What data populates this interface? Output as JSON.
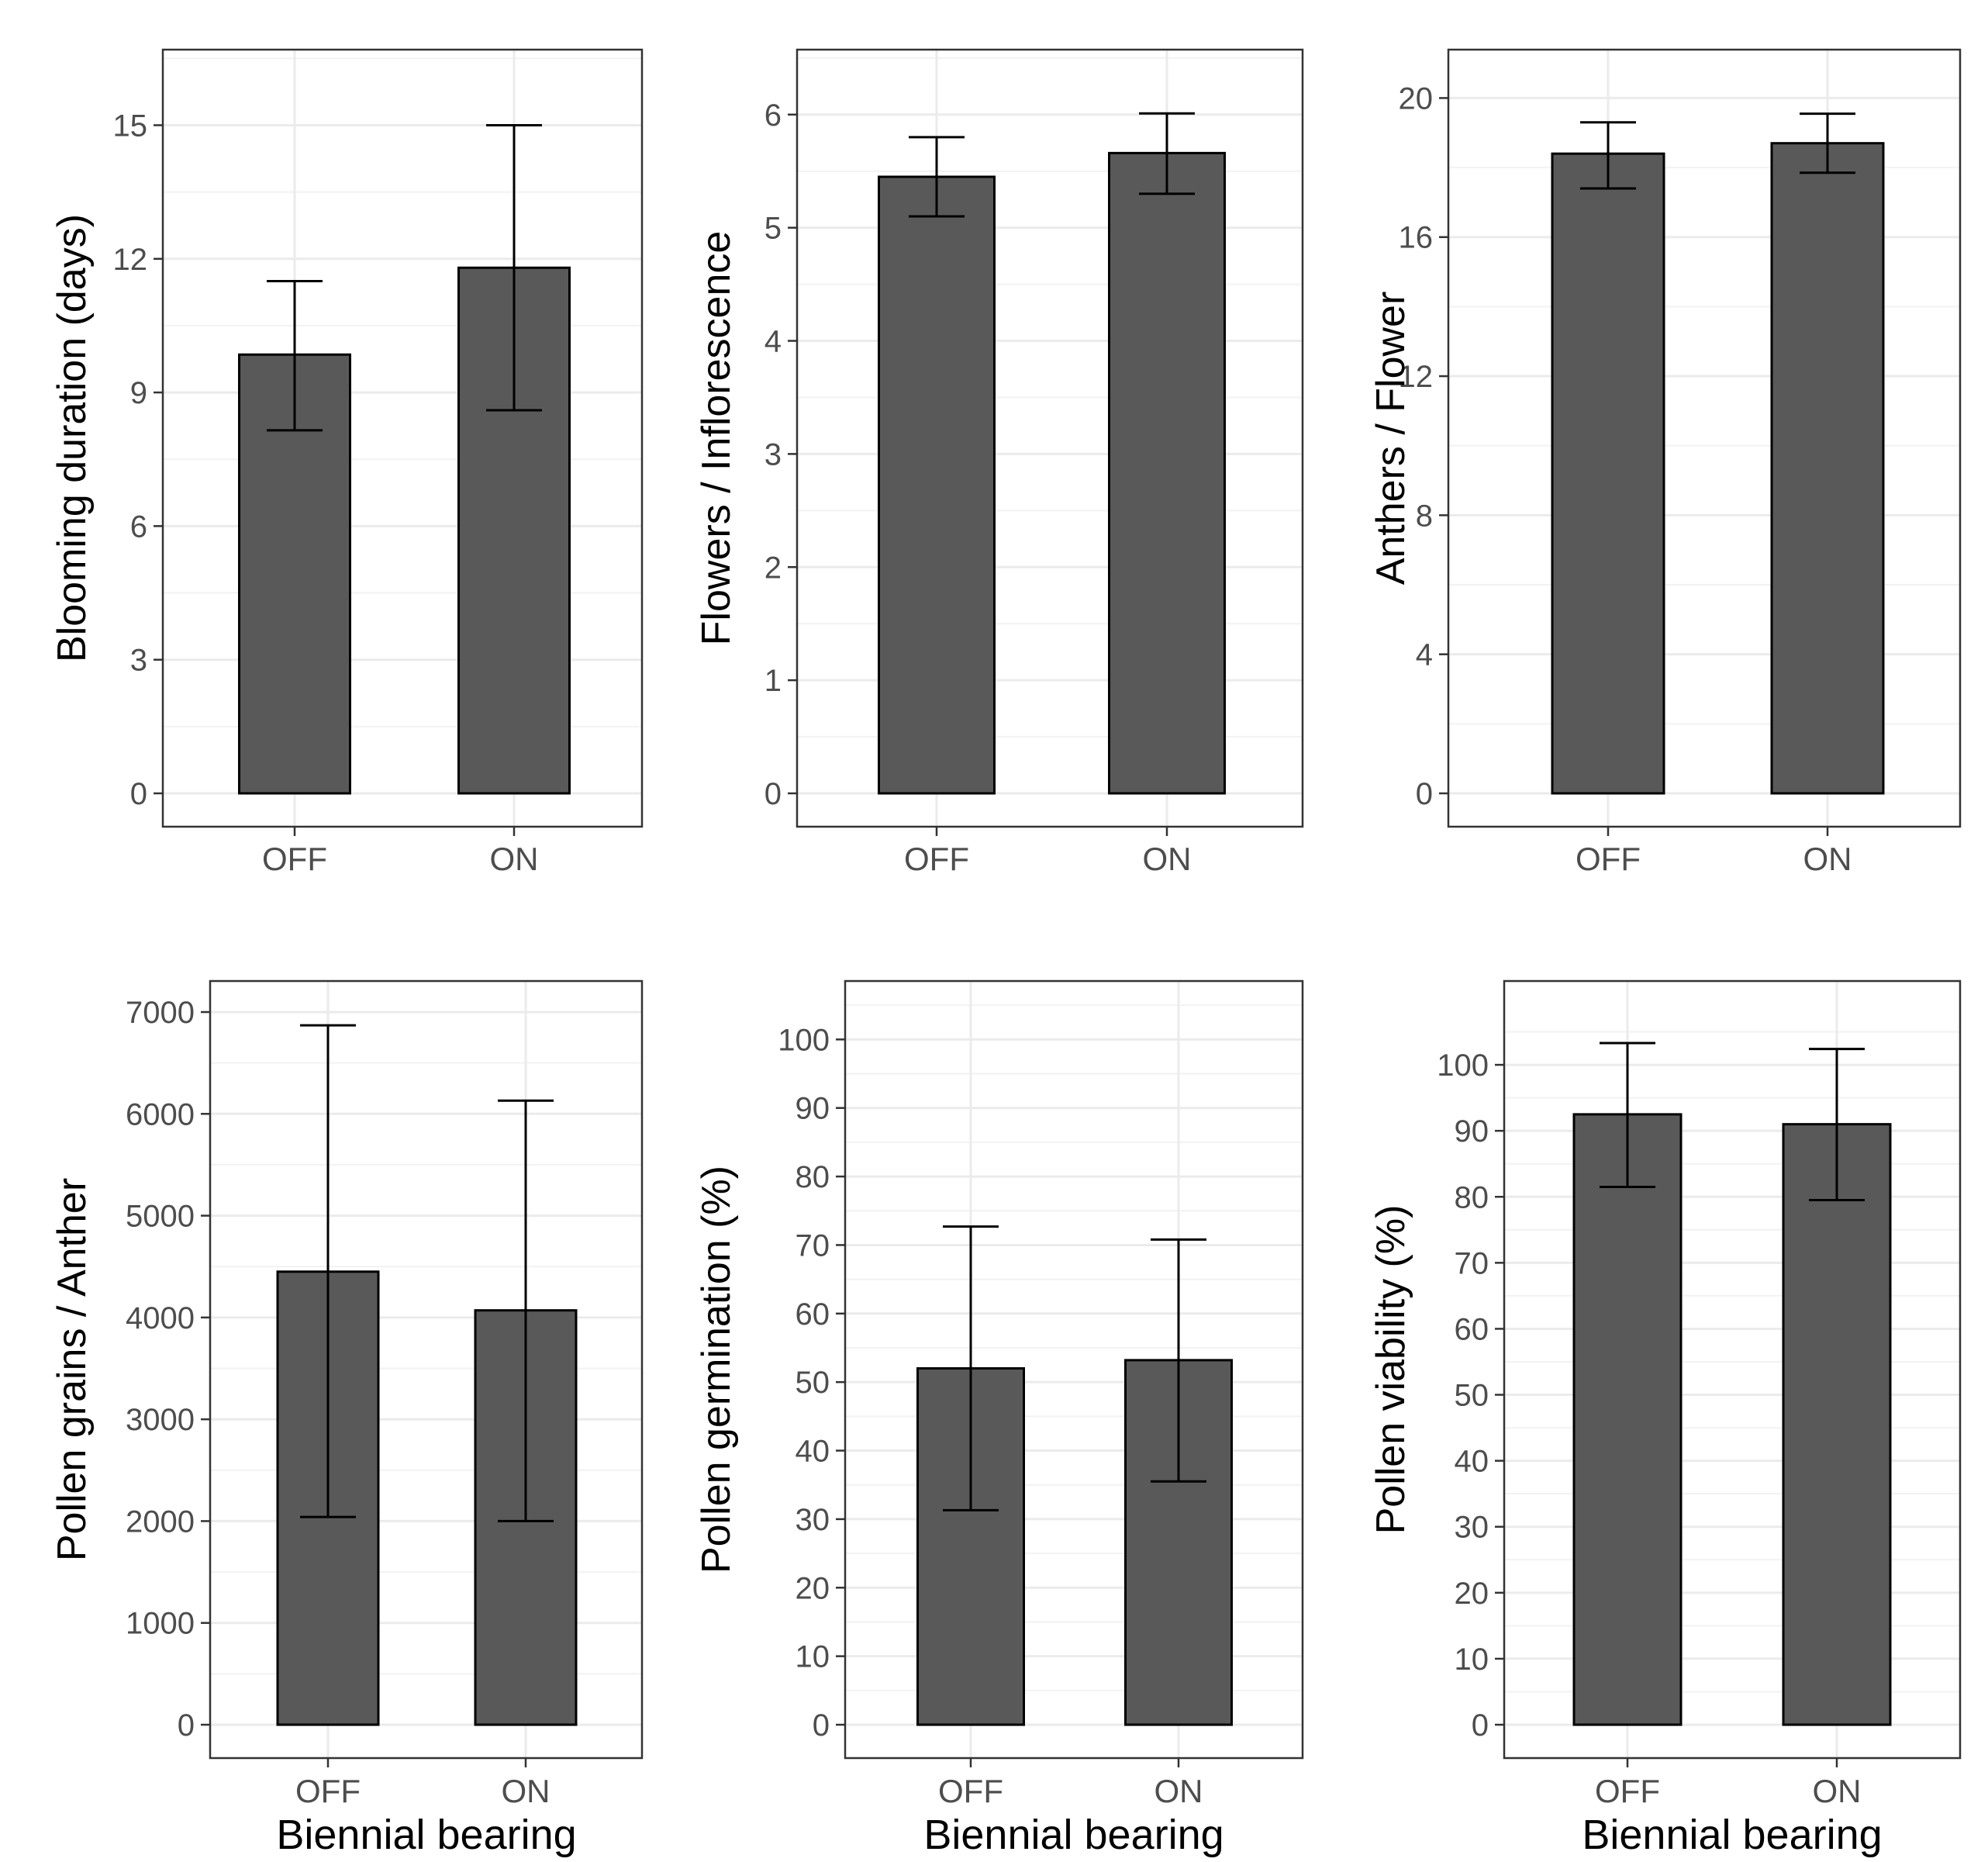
{
  "chart_data": [
    {
      "type": "bar",
      "categories": [
        "OFF",
        "ON"
      ],
      "values": [
        9.85,
        11.8
      ],
      "error_low": [
        8.15,
        8.6
      ],
      "error_high": [
        11.5,
        15.0
      ],
      "ylabel": "Blooming duration (days)",
      "xlabel": "",
      "ylim": [
        0,
        16
      ],
      "yticks": [
        0,
        3,
        6,
        9,
        12,
        15
      ],
      "tick_labels": [
        "0",
        "3",
        "6",
        "9",
        "12",
        "15"
      ],
      "grid": true,
      "bar_color": "#595959"
    },
    {
      "type": "bar",
      "categories": [
        "OFF",
        "ON"
      ],
      "values": [
        5.45,
        5.66
      ],
      "error_low": [
        5.1,
        5.3
      ],
      "error_high": [
        5.8,
        6.01
      ],
      "ylabel": "Flowers / Inflorescence",
      "xlabel": "",
      "ylim": [
        0,
        6.3
      ],
      "yticks": [
        0,
        1,
        2,
        3,
        4,
        5,
        6
      ],
      "tick_labels": [
        "0",
        "1",
        "2",
        "3",
        "4",
        "5",
        "6"
      ],
      "grid": true,
      "bar_color": "#595959"
    },
    {
      "type": "bar",
      "categories": [
        "OFF",
        "ON"
      ],
      "values": [
        18.4,
        18.7
      ],
      "error_low": [
        17.4,
        17.85
      ],
      "error_high": [
        19.3,
        19.55
      ],
      "ylabel": "Anthers / Flower",
      "xlabel": "",
      "ylim": [
        0,
        20.5
      ],
      "yticks": [
        0,
        4,
        8,
        12,
        16,
        20
      ],
      "tick_labels": [
        "0",
        "4",
        "8",
        "12",
        "16",
        "20"
      ],
      "grid": true,
      "bar_color": "#595959"
    },
    {
      "type": "bar",
      "categories": [
        "OFF",
        "ON"
      ],
      "values": [
        4450,
        4070
      ],
      "error_low": [
        2040,
        2000
      ],
      "error_high": [
        6870,
        6130
      ],
      "ylabel": "Pollen grains / Anther",
      "xlabel": "Biennial bearing",
      "ylim": [
        0,
        7000
      ],
      "yticks": [
        0,
        1000,
        2000,
        3000,
        4000,
        5000,
        6000,
        7000
      ],
      "tick_labels": [
        "0",
        "1000",
        "2000",
        "3000",
        "4000",
        "5000",
        "6000",
        "7000"
      ],
      "grid": true,
      "bar_color": "#595959"
    },
    {
      "type": "bar",
      "categories": [
        "OFF",
        "ON"
      ],
      "values": [
        52,
        53.2
      ],
      "error_low": [
        31.3,
        35.5
      ],
      "error_high": [
        72.7,
        70.8
      ],
      "ylabel": "Pollen germination (%)",
      "xlabel": "Biennial bearing",
      "ylim": [
        0,
        104
      ],
      "yticks": [
        0,
        10,
        20,
        30,
        40,
        50,
        60,
        70,
        80,
        90,
        100
      ],
      "tick_labels": [
        "0",
        "10",
        "20",
        "30",
        "40",
        "50",
        "60",
        "70",
        "80",
        "90",
        "100"
      ],
      "grid": true,
      "bar_color": "#595959"
    },
    {
      "type": "bar",
      "categories": [
        "OFF",
        "ON"
      ],
      "values": [
        92.5,
        91.0
      ],
      "error_low": [
        81.5,
        79.5
      ],
      "error_high": [
        103.3,
        102.4
      ],
      "ylabel": "Pollen viability (%)",
      "xlabel": "Biennial bearing",
      "ylim": [
        0,
        108
      ],
      "yticks": [
        0,
        10,
        20,
        30,
        40,
        50,
        60,
        70,
        80,
        90,
        100
      ],
      "tick_labels": [
        "0",
        "10",
        "20",
        "30",
        "40",
        "50",
        "60",
        "70",
        "80",
        "90",
        "100"
      ],
      "grid": true,
      "bar_color": "#595959"
    }
  ]
}
